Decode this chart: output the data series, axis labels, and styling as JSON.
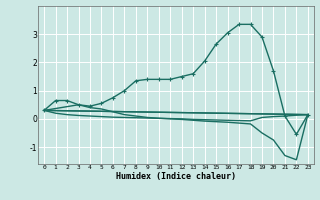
{
  "title": "",
  "xlabel": "Humidex (Indice chaleur)",
  "bg_color": "#cce8e4",
  "grid_color": "#ffffff",
  "line_color": "#1a6e62",
  "xlim": [
    -0.5,
    23.5
  ],
  "ylim": [
    -1.6,
    4.0
  ],
  "xticks": [
    0,
    1,
    2,
    3,
    4,
    5,
    6,
    7,
    8,
    9,
    10,
    11,
    12,
    13,
    14,
    15,
    16,
    17,
    18,
    19,
    20,
    21,
    22,
    23
  ],
  "yticks": [
    -1,
    0,
    1,
    2,
    3
  ],
  "curve1_x": [
    0,
    1,
    2,
    3,
    4,
    5,
    6,
    7,
    8,
    9,
    10,
    11,
    12,
    13,
    14,
    15,
    16,
    17,
    18,
    19,
    20,
    21,
    22,
    23
  ],
  "curve1_y": [
    0.3,
    0.65,
    0.65,
    0.5,
    0.45,
    0.55,
    0.75,
    1.0,
    1.35,
    1.4,
    1.4,
    1.4,
    1.5,
    1.6,
    2.05,
    2.65,
    3.05,
    3.35,
    3.35,
    2.9,
    1.7,
    0.1,
    -0.55,
    0.15
  ],
  "curve2_x": [
    0,
    23
  ],
  "curve2_y": [
    0.3,
    0.15
  ],
  "curve3_x": [
    0,
    23
  ],
  "curve3_y": [
    0.3,
    0.15
  ],
  "curve4_x": [
    0,
    3,
    4,
    5,
    6,
    7,
    8,
    9,
    10,
    11,
    12,
    13,
    14,
    15,
    16,
    17,
    18,
    19,
    20,
    21,
    22,
    23
  ],
  "curve4_y": [
    0.3,
    0.5,
    0.4,
    0.35,
    0.25,
    0.15,
    0.1,
    0.05,
    0.02,
    0.0,
    -0.02,
    -0.05,
    -0.08,
    -0.1,
    -0.12,
    -0.15,
    -0.18,
    -0.5,
    -0.75,
    -1.3,
    -1.45,
    0.15
  ],
  "curve5_x": [
    0,
    1,
    2,
    3,
    4,
    5,
    6,
    7,
    8,
    9,
    10,
    11,
    12,
    13,
    14,
    15,
    16,
    17,
    18,
    19,
    20,
    21,
    22,
    23
  ],
  "curve5_y": [
    0.3,
    0.2,
    0.15,
    0.12,
    0.1,
    0.08,
    0.06,
    0.05,
    0.04,
    0.03,
    0.02,
    0.01,
    0.0,
    -0.02,
    -0.03,
    -0.04,
    -0.05,
    -0.06,
    -0.07,
    0.05,
    0.08,
    0.1,
    0.13,
    0.15
  ]
}
